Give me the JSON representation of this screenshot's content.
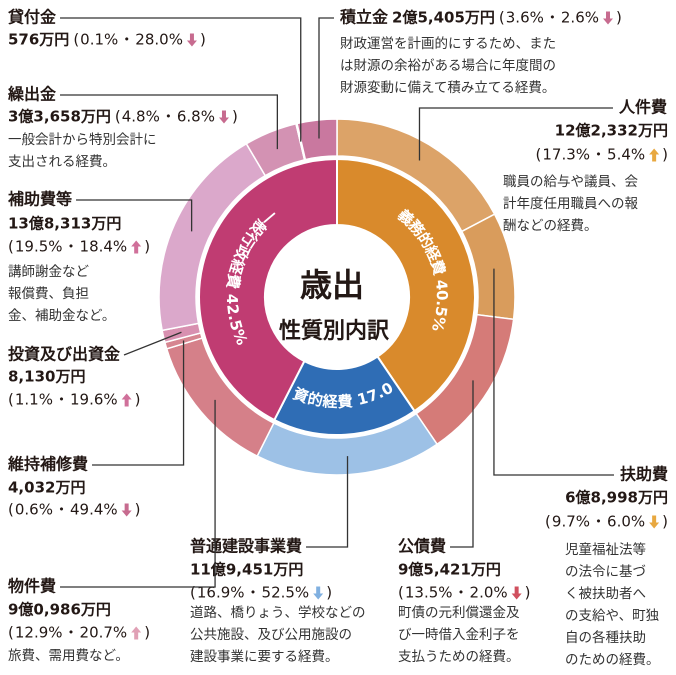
{
  "chart_data": {
    "type": "donut",
    "title": "歳出",
    "subtitle": "性質別内訳",
    "paren_open": "(",
    "separator": "・",
    "paren_close": ")",
    "inner": {
      "categories": [
        "義務的経費",
        "投資的経費",
        "一般行政経費"
      ],
      "values": [
        40.5,
        17.0,
        42.5
      ],
      "value_labels": [
        "40.5%",
        "17.0%",
        "42.5%"
      ],
      "colors": [
        "#d98a2c",
        "#2f6db5",
        "#c03c72"
      ]
    },
    "outer": {
      "categories": [
        "人件費",
        "扶助費",
        "公債費",
        "普通建設事業費",
        "物件費",
        "維持補修費",
        "投資及び出資金",
        "補助費等",
        "繰出金",
        "貸付金",
        "積立金"
      ],
      "amounts": [
        "12億2,332万円",
        "6億8,998万円",
        "9億5,421万円",
        "11億9,451万円",
        "9億0,986万円",
        "4,032万円",
        "8,130万円",
        "13億8,313万円",
        "3億3,658万円",
        "576万円",
        "2億5,405万円"
      ],
      "values": [
        17.3,
        9.7,
        13.5,
        16.9,
        12.9,
        0.6,
        1.1,
        19.5,
        4.8,
        0.1,
        3.6
      ],
      "value_labels": [
        "17.3%",
        "9.7%",
        "13.5%",
        "16.9%",
        "12.9%",
        "0.6%",
        "1.1%",
        "19.5%",
        "4.8%",
        "0.1%",
        "3.6%"
      ],
      "change_labels": [
        "5.4%",
        "6.0%",
        "2.0%",
        "52.5%",
        "20.7%",
        "49.4%",
        "19.6%",
        "18.4%",
        "6.8%",
        "28.0%",
        "2.6%"
      ],
      "trends": [
        "up",
        "down",
        "down",
        "down",
        "up",
        "down",
        "up",
        "up",
        "down",
        "down",
        "down"
      ],
      "arrow_colors": [
        "#e8a840",
        "#e8a840",
        "#d0505e",
        "#80b0e0",
        "#e0a0b5",
        "#c76b8f",
        "#d0709a",
        "#d0709a",
        "#c76b8f",
        "#c76b8f",
        "#c76b8f"
      ],
      "colors": [
        "#dca368",
        "#d99c5c",
        "#d57b78",
        "#9dc1e6",
        "#d58089",
        "#d68590",
        "#d890b0",
        "#dba8cb",
        "#d392b3",
        "#cf84a8",
        "#c9789f"
      ],
      "descriptions": [
        [
          "職員の給与や議員、会",
          "計年度任用職員への報",
          "酬などの経費。"
        ],
        [
          "児童福祉法等",
          "の法令に基づ",
          "く被扶助者へ",
          "の支給や、町独",
          "自の各種扶助",
          "のための経費。"
        ],
        [
          "町債の元利償還金及",
          "び一時借入金利子を",
          "支払うための経費。"
        ],
        [
          "道路、橋りょう、学校などの",
          "公共施設、及び公用施設の",
          "建設事業に要する経費。"
        ],
        [
          "旅費、需用費など。"
        ],
        [],
        [],
        [
          "講師謝金など",
          "報償費、負担",
          "金、補助金など。"
        ],
        [
          "一般会計から特別会計に",
          "支出される経費。"
        ],
        [],
        [
          "財政運営を計画的にするため、また",
          "は財源の余裕がある場合に年度間の",
          "財源変動に備えて積み立てる経費。"
        ]
      ]
    }
  }
}
